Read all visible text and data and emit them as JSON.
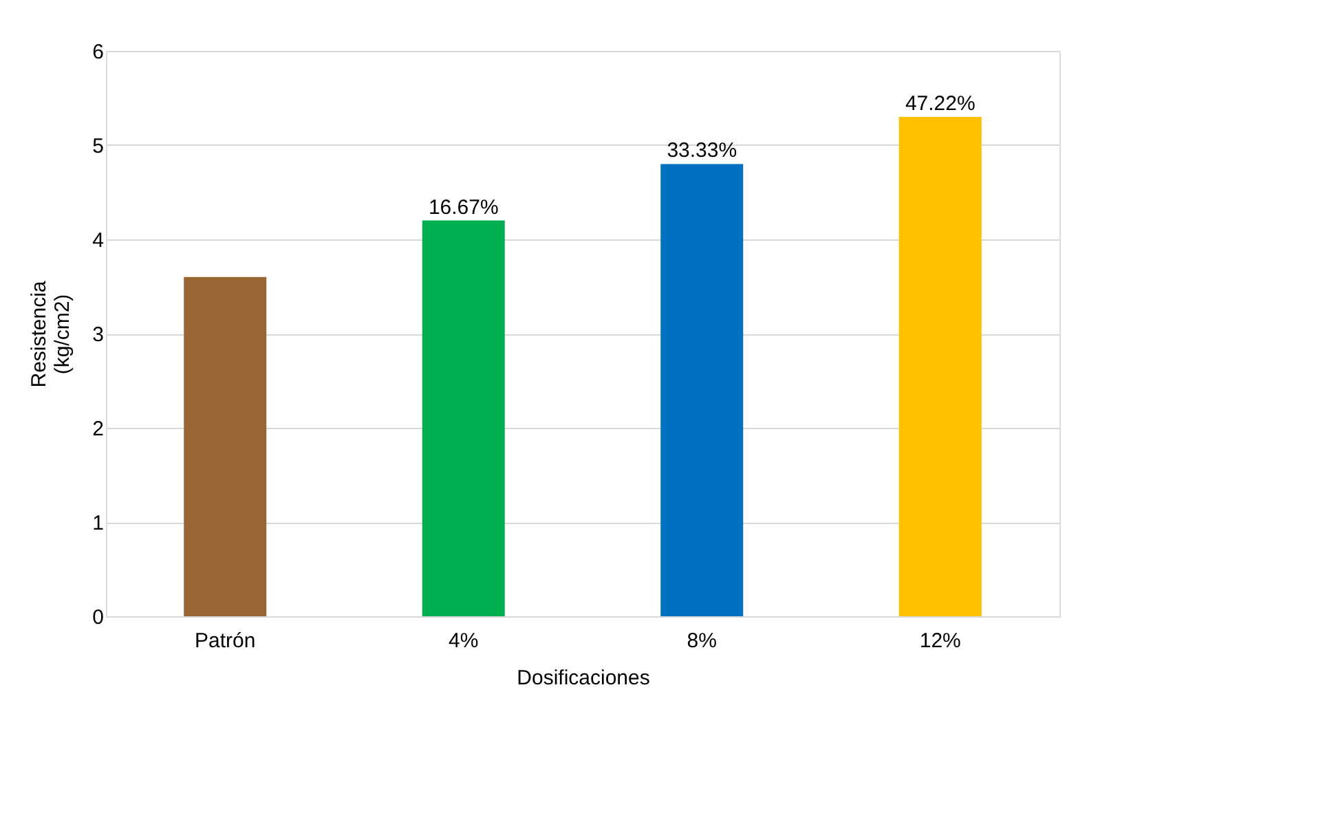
{
  "chart_data": {
    "type": "bar",
    "xlabel": "Dosificaciones",
    "ylabel": "Resistencia\n(kg/cm2)",
    "categories": [
      "Patrón",
      "4%",
      "8%",
      "12%"
    ],
    "values": [
      3.6,
      4.2,
      4.8,
      5.3
    ],
    "colors": [
      "#996633",
      "#00b050",
      "#0070c0",
      "#ffc000"
    ],
    "annotations": [
      {
        "text": "16.67%",
        "x": "4%",
        "y": 4.2
      },
      {
        "text": "33.33%",
        "x": "8%",
        "y": 4.8
      },
      {
        "text": "47.22%",
        "x": "12%",
        "y": 5.3
      }
    ],
    "ylim": [
      0,
      6
    ],
    "yticks": [
      0,
      1,
      2,
      3,
      4,
      5,
      6
    ],
    "grid": "y"
  }
}
